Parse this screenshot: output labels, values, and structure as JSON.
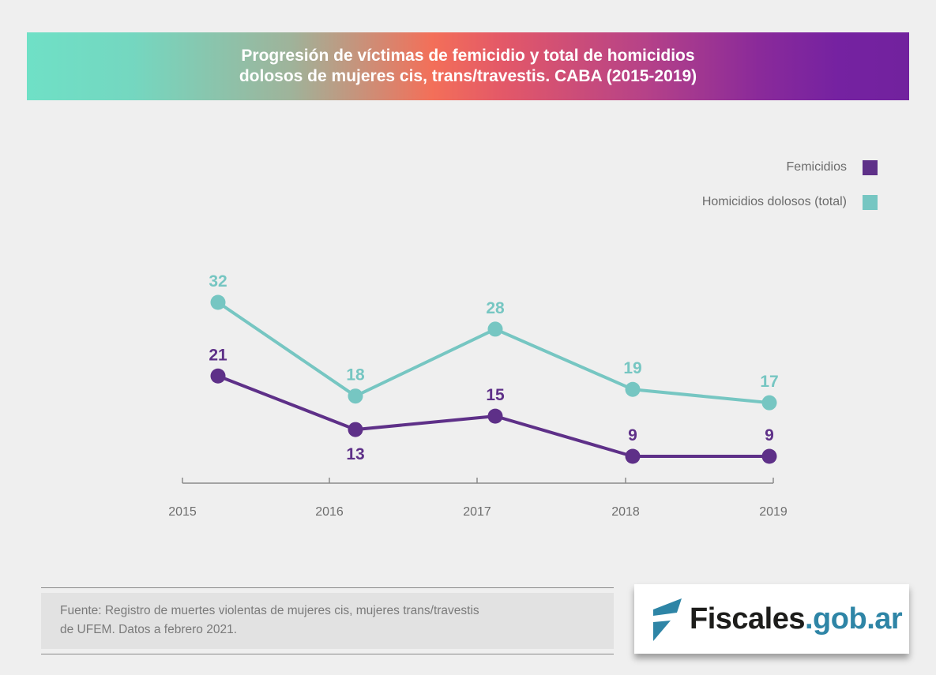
{
  "header": {
    "title_line1": "Progresión de víctimas de femicidio y total de homicidios",
    "title_line2": "dolosos de mujeres cis, trans/travestis. CABA (2015-2019)"
  },
  "legend": {
    "items": [
      {
        "label": "Femicidios",
        "color": "#5e3088"
      },
      {
        "label": "Homicidios dolosos (total)",
        "color": "#76c6c2"
      }
    ]
  },
  "chart_data": {
    "type": "line",
    "title": "Progresión de víctimas de femicidio y total de homicidios dolosos de mujeres cis, trans/travestis. CABA (2015-2019)",
    "xlabel": "",
    "ylabel": "",
    "categories": [
      "2015",
      "2016",
      "2017",
      "2018",
      "2019"
    ],
    "series": [
      {
        "name": "Homicidios dolosos (total)",
        "color": "#76c6c2",
        "values": [
          32,
          18,
          28,
          19,
          17
        ]
      },
      {
        "name": "Femicidios",
        "color": "#5e3088",
        "values": [
          21,
          13,
          15,
          9,
          9
        ]
      }
    ],
    "data_labels": true,
    "grid": false,
    "y_axis_visible": false,
    "legend_position": "top-right"
  },
  "footer": {
    "source_line1": "Fuente: Registro de muertes violentas de mujeres cis, mujeres trans/travestis",
    "source_line2": "de UFEM. Datos a febrero 2021."
  },
  "logo": {
    "main": "Fiscales",
    "domain": ".gob.ar",
    "mark_color": "#2e85a6"
  }
}
